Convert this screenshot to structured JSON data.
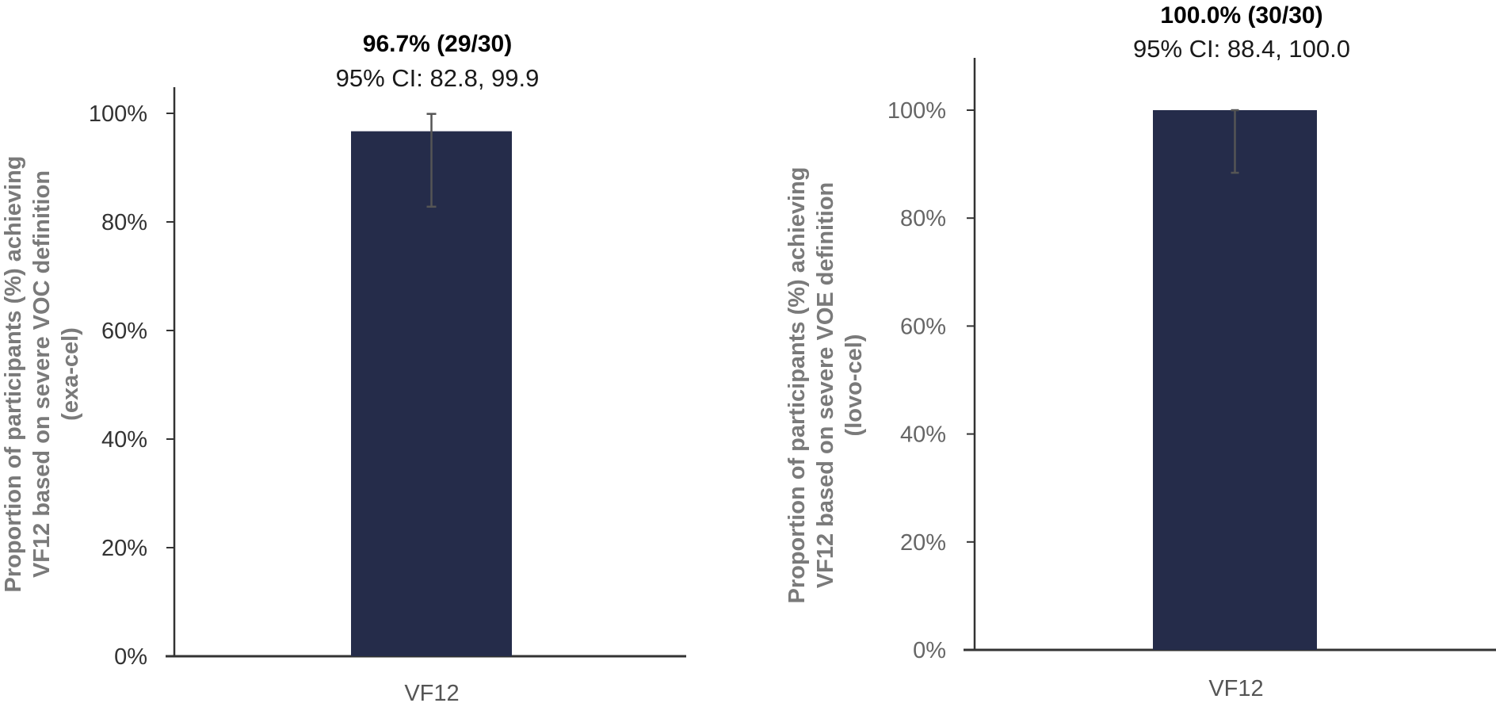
{
  "chart_data": [
    {
      "type": "bar",
      "categories": [
        "VF12"
      ],
      "values": [
        96.7
      ],
      "error_bars": [
        {
          "low": 82.8,
          "high": 99.9
        }
      ],
      "annotation_main": "96.7% (29/30)",
      "annotation_ci": "95% CI: 82.8, 99.9",
      "ylabel_lines": [
        "Proportion of participants (%) achieving",
        "VF12 based on severe VOC definition",
        "(exa-cel)"
      ],
      "yticks": [
        "0%",
        "20%",
        "40%",
        "60%",
        "80%",
        "100%"
      ],
      "ylim": [
        0,
        100
      ],
      "bar_color": "#252c4a",
      "grid": false
    },
    {
      "type": "bar",
      "categories": [
        "VF12"
      ],
      "values": [
        100.0
      ],
      "error_bars": [
        {
          "low": 88.4,
          "high": 100.0
        }
      ],
      "annotation_main": "100.0% (30/30)",
      "annotation_ci": "95% CI: 88.4, 100.0",
      "ylabel_lines": [
        "Proportion of participants (%)  achieving",
        "VF12 based on severe VOE definition",
        "(lovo-cel)"
      ],
      "yticks": [
        "0%",
        "20%",
        "40%",
        "60%",
        "80%",
        "100%"
      ],
      "ylim": [
        0,
        100
      ],
      "bar_color": "#252c4a",
      "grid": false
    }
  ]
}
